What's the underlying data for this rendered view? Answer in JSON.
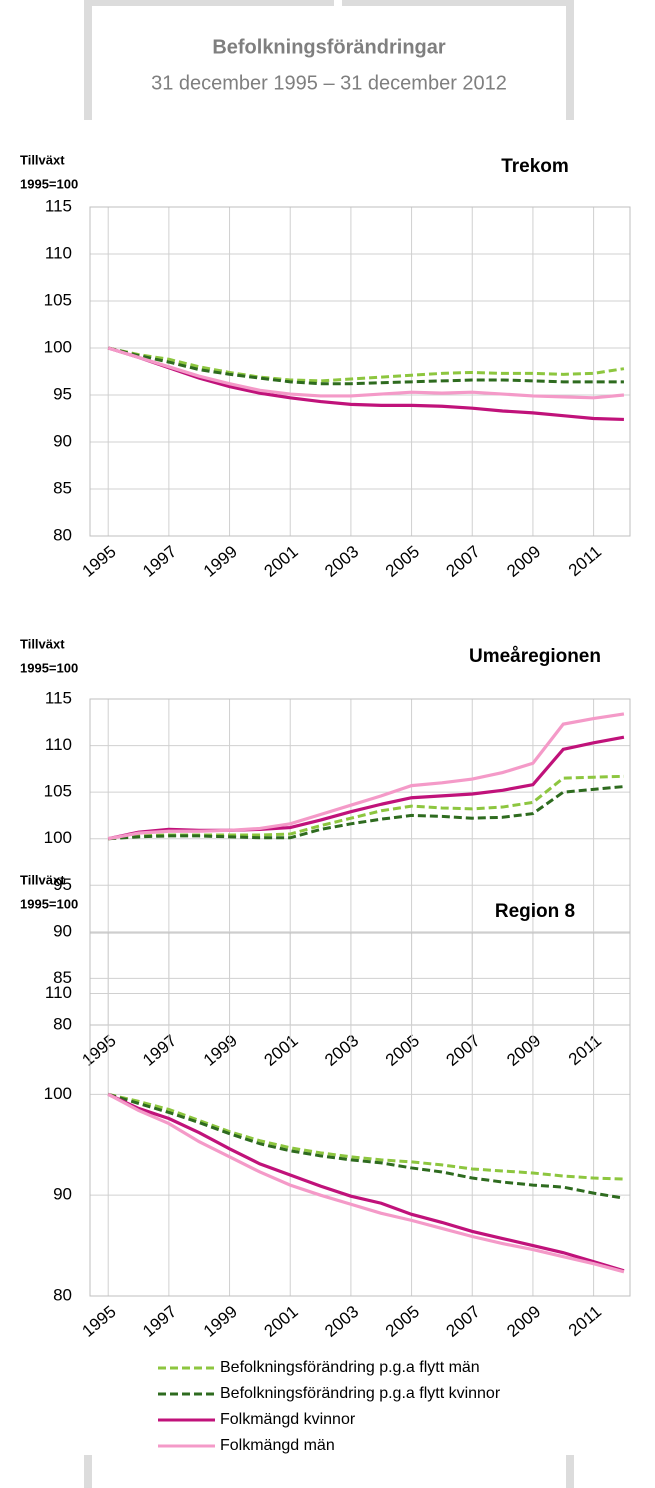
{
  "header": {
    "title": "Befolkningsförändringar",
    "subtitle": "31 december 1995 – 31 december 2012"
  },
  "chart_data": [
    {
      "type": "line",
      "title": "Trekom",
      "ylabel": [
        "Tillväxt",
        "1995=100"
      ],
      "x": [
        1995,
        1996,
        1997,
        1998,
        1999,
        2000,
        2001,
        2002,
        2003,
        2004,
        2005,
        2006,
        2007,
        2008,
        2009,
        2010,
        2011,
        2012
      ],
      "xlim": [
        1994.4,
        2012.2
      ],
      "xticks": [
        1995,
        1997,
        1999,
        2001,
        2003,
        2005,
        2007,
        2009,
        2011
      ],
      "ylim": [
        80,
        115
      ],
      "yticks": [
        80,
        85,
        90,
        95,
        100,
        105,
        110,
        115
      ],
      "grid": true,
      "series": [
        {
          "color": "#8dc63f",
          "dash": true,
          "values": [
            100,
            99.3,
            98.8,
            98,
            97.4,
            96.9,
            96.6,
            96.5,
            96.7,
            96.9,
            97.1,
            97.3,
            97.4,
            97.3,
            97.3,
            97.2,
            97.3,
            97.8
          ]
        },
        {
          "color": "#2e6b1f",
          "dash": true,
          "values": [
            100,
            99.2,
            98.5,
            97.7,
            97.2,
            96.8,
            96.4,
            96.2,
            96.2,
            96.3,
            96.4,
            96.5,
            96.6,
            96.6,
            96.5,
            96.4,
            96.4,
            96.4
          ]
        },
        {
          "color": "#c0127a",
          "dash": false,
          "values": [
            100,
            99,
            97.9,
            96.8,
            95.9,
            95.2,
            94.7,
            94.3,
            94,
            93.9,
            93.9,
            93.8,
            93.6,
            93.3,
            93.1,
            92.8,
            92.5,
            92.4
          ]
        },
        {
          "color": "#f49ac8",
          "dash": false,
          "values": [
            100,
            99,
            98,
            97,
            96.2,
            95.5,
            95.1,
            94.9,
            94.9,
            95.1,
            95.3,
            95.2,
            95.3,
            95.1,
            94.9,
            94.8,
            94.7,
            95
          ]
        }
      ]
    },
    {
      "type": "line",
      "title": "Umeåregionen",
      "ylabel": [
        "Tillväxt",
        "1995=100"
      ],
      "x": [
        1995,
        1996,
        1997,
        1998,
        1999,
        2000,
        2001,
        2002,
        2003,
        2004,
        2005,
        2006,
        2007,
        2008,
        2009,
        2010,
        2011,
        2012
      ],
      "xlim": [
        1994.4,
        2012.2
      ],
      "xticks": [
        1995,
        1997,
        1999,
        2001,
        2003,
        2005,
        2007,
        2009,
        2011
      ],
      "ylim": [
        80,
        115
      ],
      "yticks": [
        80,
        85,
        90,
        95,
        100,
        105,
        110,
        115
      ],
      "grid": true,
      "series": [
        {
          "color": "#8dc63f",
          "dash": true,
          "values": [
            100,
            100.3,
            100.4,
            100.4,
            100.4,
            100.4,
            100.5,
            101.4,
            102.2,
            103,
            103.5,
            103.3,
            103.2,
            103.4,
            103.9,
            106.5,
            106.6,
            106.7
          ]
        },
        {
          "color": "#2e6b1f",
          "dash": true,
          "values": [
            100,
            100.2,
            100.3,
            100.3,
            100.2,
            100.1,
            100.1,
            101,
            101.6,
            102.1,
            102.5,
            102.4,
            102.2,
            102.3,
            102.7,
            105,
            105.3,
            105.6
          ]
        },
        {
          "color": "#c0127a",
          "dash": false,
          "values": [
            100,
            100.7,
            101,
            100.9,
            100.9,
            101,
            101.2,
            102,
            102.9,
            103.7,
            104.4,
            104.6,
            104.8,
            105.2,
            105.8,
            109.6,
            110.3,
            110.9
          ]
        },
        {
          "color": "#f49ac8",
          "dash": false,
          "values": [
            100,
            100.6,
            100.8,
            100.8,
            100.9,
            101.1,
            101.6,
            102.6,
            103.6,
            104.6,
            105.7,
            106,
            106.4,
            107.1,
            108.1,
            112.3,
            112.9,
            113.4
          ]
        }
      ]
    },
    {
      "type": "line",
      "title": "Region 8",
      "ylabel": [
        "Tillväxt",
        "1995=100"
      ],
      "x": [
        1995,
        1996,
        1997,
        1998,
        1999,
        2000,
        2001,
        2002,
        2003,
        2004,
        2005,
        2006,
        2007,
        2008,
        2009,
        2010,
        2011,
        2012
      ],
      "xlim": [
        1994.4,
        2012.2
      ],
      "xticks": [
        1995,
        1997,
        1999,
        2001,
        2003,
        2005,
        2007,
        2009,
        2011
      ],
      "ylim": [
        80,
        116
      ],
      "yticks": [
        80,
        90,
        100,
        110
      ],
      "grid": true,
      "series": [
        {
          "name": "Befolkningsförändring p.g.a flytt män",
          "color": "#8dc63f",
          "dash": true,
          "values": [
            100,
            99.3,
            98.5,
            97.4,
            96.3,
            95.4,
            94.7,
            94.2,
            93.8,
            93.5,
            93.3,
            93,
            92.6,
            92.4,
            92.2,
            91.9,
            91.7,
            91.6
          ]
        },
        {
          "name": "Befolkningsförändring p.g.a flytt kvinnor",
          "color": "#2e6b1f",
          "dash": true,
          "values": [
            100,
            99.1,
            98.2,
            97.2,
            96.1,
            95.1,
            94.4,
            93.9,
            93.5,
            93.2,
            92.7,
            92.3,
            91.7,
            91.3,
            91,
            90.8,
            90.2,
            89.7
          ]
        },
        {
          "name": "Folkmängd kvinnor",
          "color": "#c0127a",
          "dash": false,
          "values": [
            100,
            98.6,
            97.6,
            96.2,
            94.6,
            93.1,
            92,
            90.9,
            89.9,
            89.2,
            88.1,
            87.3,
            86.4,
            85.7,
            85,
            84.3,
            83.4,
            82.5
          ]
        },
        {
          "name": "Folkmängd män",
          "color": "#f49ac8",
          "dash": false,
          "values": [
            100,
            98.4,
            97.1,
            95.3,
            93.8,
            92.3,
            91,
            90,
            89.1,
            88.2,
            87.5,
            86.7,
            85.9,
            85.2,
            84.6,
            83.9,
            83.2,
            82.4
          ]
        }
      ]
    }
  ]
}
